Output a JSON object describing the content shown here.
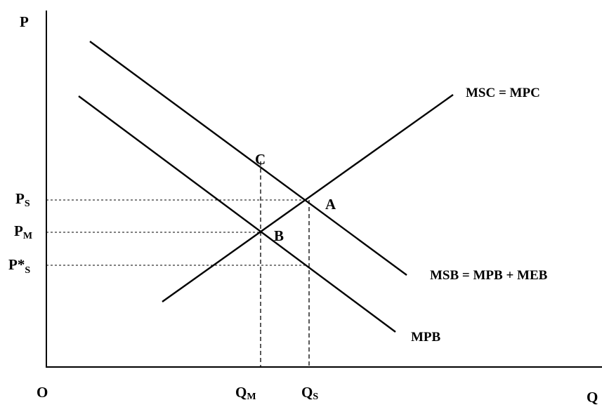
{
  "axes": {
    "y_label": "P",
    "x_label": "Q",
    "origin_label": "O"
  },
  "price_labels": {
    "ps": {
      "main": "P",
      "sub": "S"
    },
    "pm": {
      "main": "P",
      "sub": "M"
    },
    "p_star_s": {
      "main": "P*",
      "sub": "S"
    }
  },
  "quantity_labels": {
    "qm": {
      "main": "Q",
      "sub": "M"
    },
    "qs": {
      "main": "Q",
      "sub": "S"
    }
  },
  "curves": {
    "msc": "MSC = MPC",
    "msb": "MSB = MPB + MEB",
    "mpb": "MPB"
  },
  "points": {
    "a": "A",
    "b": "B",
    "c": "C"
  }
}
